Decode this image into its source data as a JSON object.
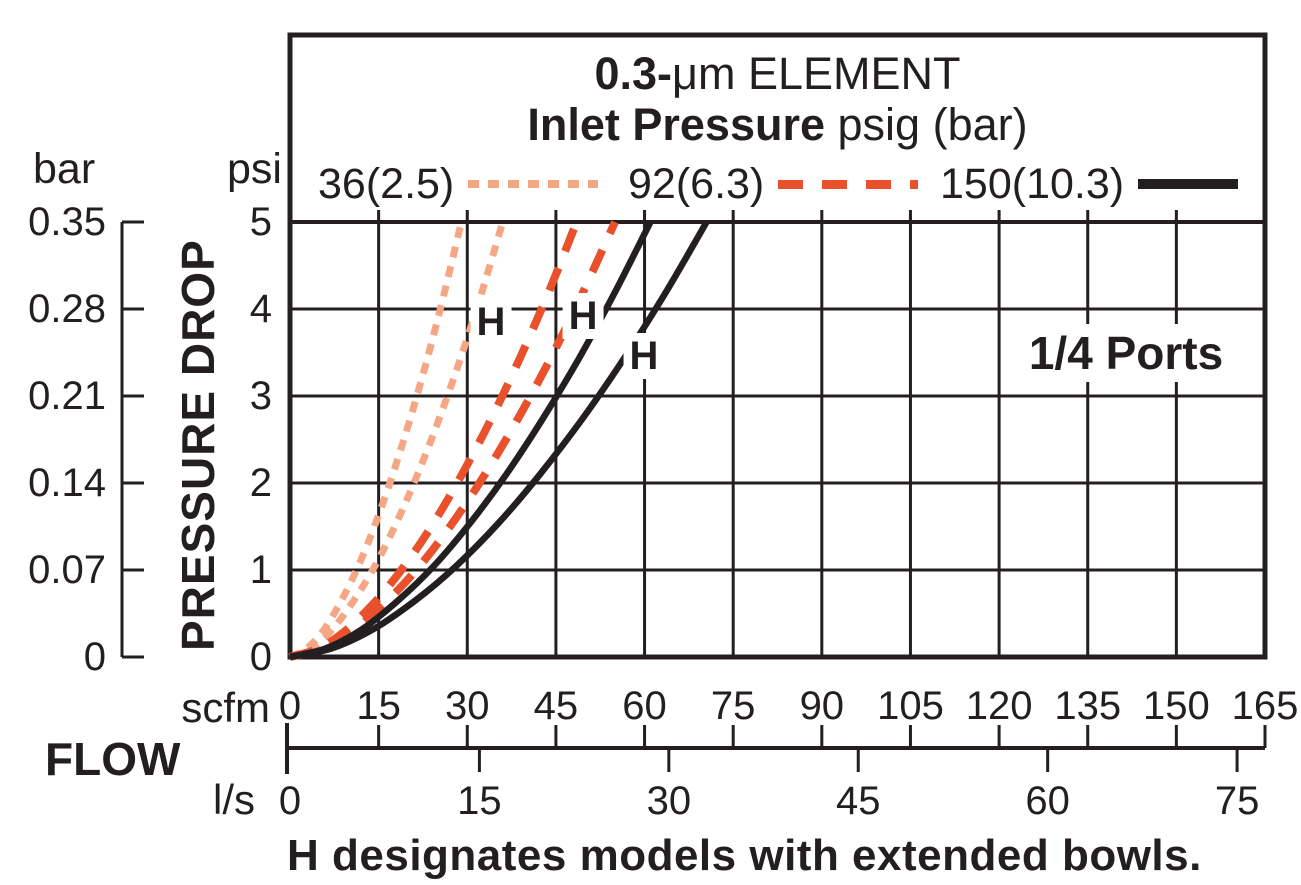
{
  "title": {
    "line1_bold": "0.3-",
    "line1_rest": "μm ELEMENT",
    "line2_bold": "Inlet Pressure",
    "line2_rest": " psig (bar)"
  },
  "legend": {
    "items": [
      {
        "label": "36(2.5)",
        "color": "#F5A785",
        "style": "dotted"
      },
      {
        "label": "92(6.3)",
        "color": "#E8512B",
        "style": "dashed"
      },
      {
        "label": "150(10.3)",
        "color": "#231F20",
        "style": "solid"
      }
    ]
  },
  "axes": {
    "pressure_label": "PRESSURE DROP",
    "flow_label": "FLOW",
    "bar_unit": "bar",
    "psi_unit": "psi",
    "scfm_unit": "scfm",
    "ls_unit": "l/s",
    "bar_ticks": [
      "0.35",
      "0.28",
      "0.21",
      "0.14",
      "0.07",
      "0"
    ],
    "psi_ticks": [
      "5",
      "4",
      "3",
      "2",
      "1",
      "0"
    ],
    "scfm_ticks": [
      "0",
      "15",
      "30",
      "45",
      "60",
      "75",
      "90",
      "105",
      "120",
      "135",
      "150",
      "165"
    ],
    "ls_ticks": [
      "0",
      "15",
      "30",
      "45",
      "60",
      "75"
    ]
  },
  "annotations": {
    "ports_label": "1/4 Ports",
    "footnote": "H designates models with extended bowls.",
    "h_markers": [
      {
        "label": "H",
        "x_scfm": 34.0,
        "y_psi": 3.85
      },
      {
        "label": "H",
        "x_scfm": 49.6,
        "y_psi": 3.92
      },
      {
        "label": "H",
        "x_scfm": 59.9,
        "y_psi": 3.46
      }
    ]
  },
  "chart_data": {
    "type": "line",
    "title": "0.3-μm ELEMENT",
    "subtitle": "Inlet Pressure psig (bar)",
    "xlabel": "FLOW (scfm, secondary scale l/s)",
    "ylabel": "PRESSURE DROP (psi, secondary scale bar)",
    "xlim_scfm": [
      0,
      165
    ],
    "x2lim_ls": [
      0,
      75
    ],
    "ylim_psi": [
      0,
      5
    ],
    "y2lim_bar": [
      0,
      0.35
    ],
    "grid": true,
    "legend_position": "top",
    "series": [
      {
        "id": "36-standard",
        "name": "36 psig (2.5 bar) standard bowl",
        "color": "#F5A785",
        "line": "dotted",
        "points": [
          [
            0,
            0
          ],
          [
            2.9,
            0.1
          ],
          [
            5.8,
            0.32
          ],
          [
            8.7,
            0.65
          ],
          [
            11.6,
            1.05
          ],
          [
            14.5,
            1.54
          ],
          [
            17.4,
            2.1
          ],
          [
            20.3,
            2.73
          ],
          [
            23.2,
            3.42
          ],
          [
            26.1,
            4.18
          ],
          [
            29,
            5
          ]
        ]
      },
      {
        "id": "36-h",
        "name": "36 psig (2.5 bar) H extended bowl",
        "color": "#F5A785",
        "line": "dotted",
        "points": [
          [
            0,
            0
          ],
          [
            3.6,
            0.1
          ],
          [
            7.2,
            0.32
          ],
          [
            10.8,
            0.65
          ],
          [
            14.4,
            1.05
          ],
          [
            18,
            1.54
          ],
          [
            21.6,
            2.1
          ],
          [
            25.2,
            2.73
          ],
          [
            28.8,
            3.42
          ],
          [
            32.4,
            4.18
          ],
          [
            36,
            5
          ]
        ]
      },
      {
        "id": "92-standard",
        "name": "92 psig (6.3 bar) standard bowl",
        "color": "#E8512B",
        "line": "dashed",
        "points": [
          [
            0,
            0
          ],
          [
            4.9,
            0.1
          ],
          [
            9.7,
            0.32
          ],
          [
            14.6,
            0.65
          ],
          [
            19.4,
            1.05
          ],
          [
            24.3,
            1.54
          ],
          [
            29.1,
            2.1
          ],
          [
            34,
            2.73
          ],
          [
            38.8,
            3.42
          ],
          [
            43.7,
            4.18
          ],
          [
            48.5,
            5
          ]
        ]
      },
      {
        "id": "92-h",
        "name": "92 psig (6.3 bar) H extended bowl",
        "color": "#E8512B",
        "line": "dashed",
        "points": [
          [
            0,
            0
          ],
          [
            5.5,
            0.1
          ],
          [
            11,
            0.32
          ],
          [
            16.5,
            0.65
          ],
          [
            22,
            1.05
          ],
          [
            27.5,
            1.54
          ],
          [
            33,
            2.1
          ],
          [
            38.5,
            2.73
          ],
          [
            44,
            3.42
          ],
          [
            49.5,
            4.18
          ],
          [
            55,
            5
          ]
        ]
      },
      {
        "id": "150-standard",
        "name": "150 psig (10.3 bar) standard bowl",
        "color": "#231F20",
        "line": "solid",
        "points": [
          [
            0,
            0
          ],
          [
            6.1,
            0.1
          ],
          [
            12.2,
            0.32
          ],
          [
            18.3,
            0.65
          ],
          [
            24.4,
            1.05
          ],
          [
            30.5,
            1.54
          ],
          [
            36.6,
            2.1
          ],
          [
            42.7,
            2.73
          ],
          [
            48.8,
            3.42
          ],
          [
            54.9,
            4.18
          ],
          [
            61,
            5
          ]
        ]
      },
      {
        "id": "150-h",
        "name": "150 psig (10.3 bar) H extended bowl",
        "color": "#231F20",
        "line": "solid",
        "points": [
          [
            0,
            0
          ],
          [
            7.1,
            0.1
          ],
          [
            14.1,
            0.32
          ],
          [
            21.2,
            0.65
          ],
          [
            28.2,
            1.05
          ],
          [
            35.3,
            1.54
          ],
          [
            42.3,
            2.1
          ],
          [
            49.4,
            2.73
          ],
          [
            56.4,
            3.42
          ],
          [
            63.5,
            4.18
          ],
          [
            70.5,
            5
          ]
        ]
      }
    ]
  }
}
